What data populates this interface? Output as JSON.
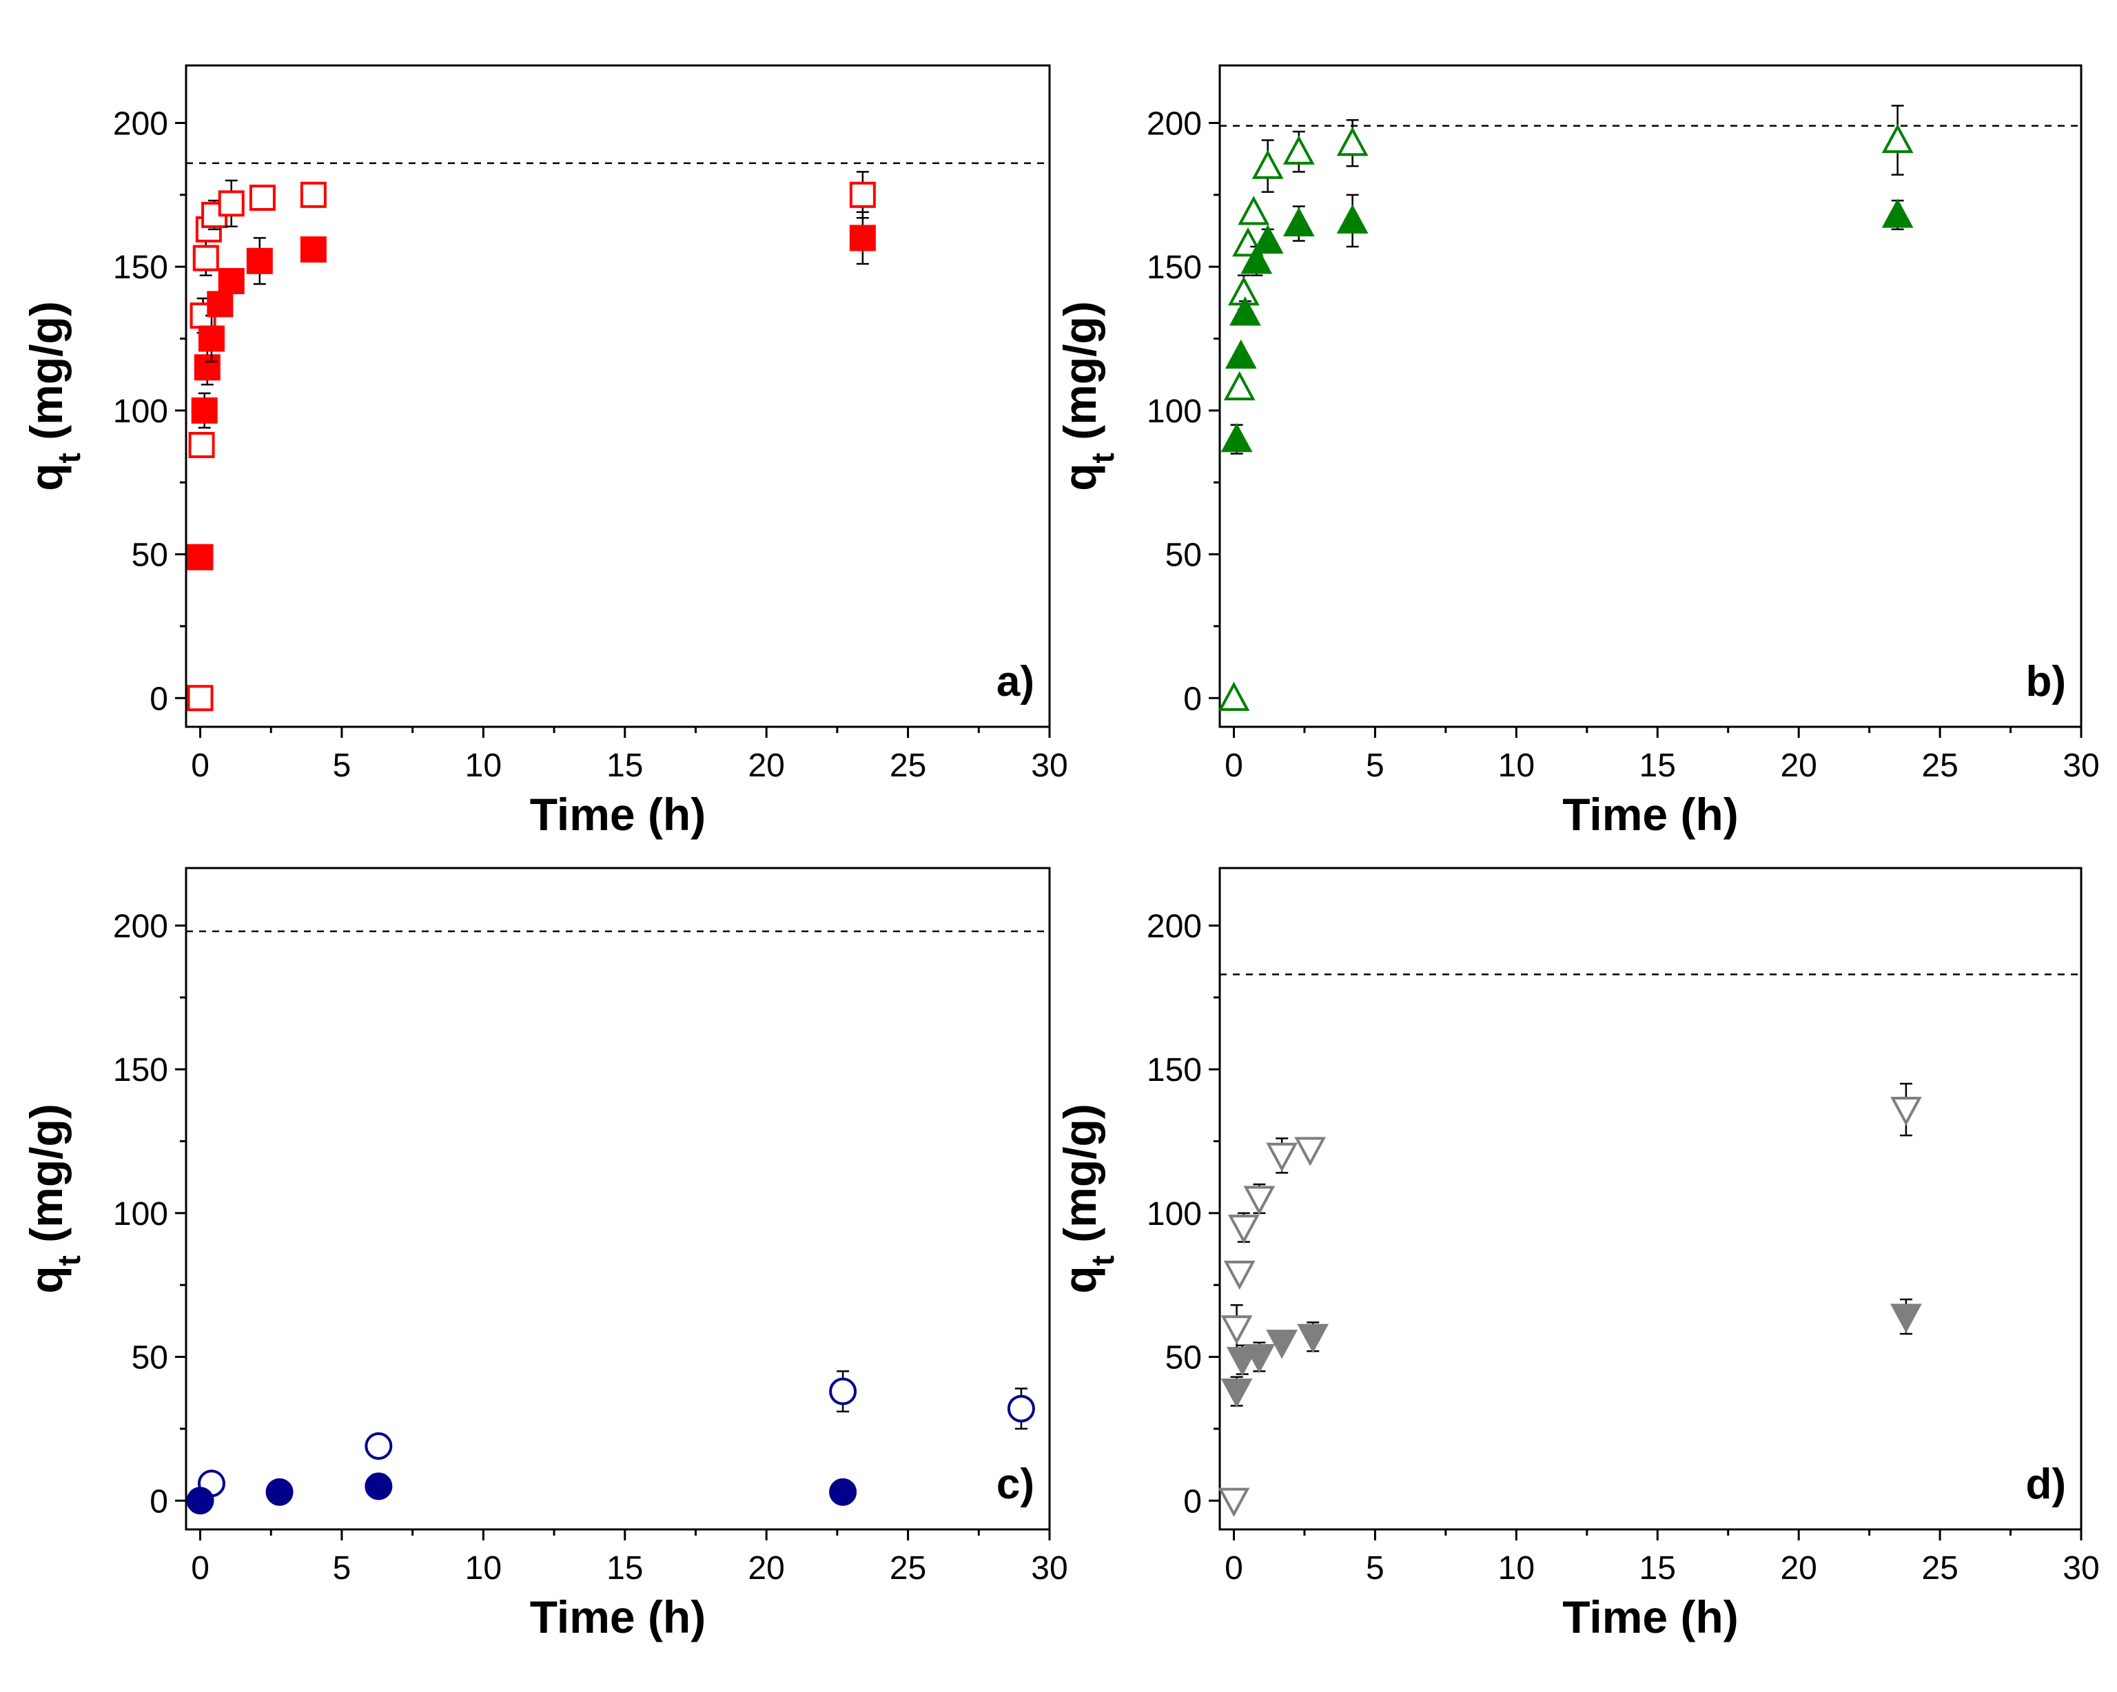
{
  "chart_data": [
    {
      "type": "scatter",
      "panel_label": "a)",
      "xlabel": "Time (h)",
      "ylabel_main": "q",
      "ylabel_sub": "t",
      "ylabel_rest": " (mg/g)",
      "xlim": [
        -0.5,
        30
      ],
      "ylim": [
        -10,
        220
      ],
      "xticks": [
        0,
        5,
        10,
        15,
        20,
        25,
        30
      ],
      "yticks": [
        0,
        50,
        100,
        150,
        200
      ],
      "x_tick_labels": [
        "0",
        "5",
        "10",
        "15",
        "20",
        "25",
        "30"
      ],
      "y_tick_labels": [
        "0",
        "50",
        "100",
        "150",
        "200"
      ],
      "reference_line": 186,
      "color": "#ff0000",
      "marker": "square",
      "series": [
        {
          "name": "open",
          "filled": false,
          "points": [
            {
              "x": 0,
              "y": 0,
              "err": 0
            },
            {
              "x": 0.05,
              "y": 88,
              "err": 0
            },
            {
              "x": 0.1,
              "y": 133,
              "err": 6
            },
            {
              "x": 0.2,
              "y": 153,
              "err": 6
            },
            {
              "x": 0.3,
              "y": 163,
              "err": 4
            },
            {
              "x": 0.5,
              "y": 168,
              "err": 5
            },
            {
              "x": 1.1,
              "y": 172,
              "err": 8
            },
            {
              "x": 2.2,
              "y": 174,
              "err": 0
            },
            {
              "x": 4.0,
              "y": 175,
              "err": 4
            },
            {
              "x": 23.4,
              "y": 175,
              "err": 8
            }
          ]
        },
        {
          "name": "filled",
          "filled": true,
          "points": [
            {
              "x": 0,
              "y": 49,
              "err": 0
            },
            {
              "x": 0.15,
              "y": 100,
              "err": 6
            },
            {
              "x": 0.25,
              "y": 115,
              "err": 6
            },
            {
              "x": 0.4,
              "y": 125,
              "err": 8
            },
            {
              "x": 0.7,
              "y": 137,
              "err": 0
            },
            {
              "x": 1.1,
              "y": 145,
              "err": 0
            },
            {
              "x": 2.1,
              "y": 152,
              "err": 8
            },
            {
              "x": 4.0,
              "y": 156,
              "err": 4
            },
            {
              "x": 23.4,
              "y": 160,
              "err": 9
            }
          ]
        }
      ]
    },
    {
      "type": "scatter",
      "panel_label": "b)",
      "xlabel": "Time (h)",
      "ylabel_main": "q",
      "ylabel_sub": "t",
      "ylabel_rest": " (mg/g)",
      "xlim": [
        -0.5,
        30
      ],
      "ylim": [
        -10,
        220
      ],
      "xticks": [
        0,
        5,
        10,
        15,
        20,
        25,
        30
      ],
      "yticks": [
        0,
        50,
        100,
        150,
        200
      ],
      "x_tick_labels": [
        "0",
        "5",
        "10",
        "15",
        "20",
        "25",
        "30"
      ],
      "y_tick_labels": [
        "0",
        "50",
        "100",
        "150",
        "200"
      ],
      "reference_line": 199,
      "color": "#008000",
      "marker": "triangle-up",
      "series": [
        {
          "name": "open",
          "filled": false,
          "points": [
            {
              "x": 0,
              "y": 0,
              "err": 0
            },
            {
              "x": 0.2,
              "y": 108,
              "err": 0
            },
            {
              "x": 0.35,
              "y": 141,
              "err": 6
            },
            {
              "x": 0.5,
              "y": 158,
              "err": 0
            },
            {
              "x": 0.7,
              "y": 169,
              "err": 0
            },
            {
              "x": 1.2,
              "y": 185,
              "err": 9
            },
            {
              "x": 2.3,
              "y": 190,
              "err": 7
            },
            {
              "x": 4.2,
              "y": 193,
              "err": 8
            },
            {
              "x": 23.5,
              "y": 194,
              "err": 12
            }
          ]
        },
        {
          "name": "filled",
          "filled": true,
          "points": [
            {
              "x": 0.1,
              "y": 90,
              "err": 5
            },
            {
              "x": 0.25,
              "y": 119,
              "err": 0
            },
            {
              "x": 0.4,
              "y": 134,
              "err": 4
            },
            {
              "x": 0.8,
              "y": 152,
              "err": 5
            },
            {
              "x": 1.2,
              "y": 159,
              "err": 4
            },
            {
              "x": 2.3,
              "y": 165,
              "err": 6
            },
            {
              "x": 4.2,
              "y": 166,
              "err": 9
            },
            {
              "x": 23.5,
              "y": 168,
              "err": 5
            }
          ]
        }
      ]
    },
    {
      "type": "scatter",
      "panel_label": "c)",
      "xlabel": "Time (h)",
      "ylabel_main": "q",
      "ylabel_sub": "t",
      "ylabel_rest": " (mg/g)",
      "xlim": [
        -0.5,
        30
      ],
      "ylim": [
        -10,
        220
      ],
      "xticks": [
        0,
        5,
        10,
        15,
        20,
        25,
        30
      ],
      "yticks": [
        0,
        50,
        100,
        150,
        200
      ],
      "x_tick_labels": [
        "0",
        "5",
        "10",
        "15",
        "20",
        "25",
        "30"
      ],
      "y_tick_labels": [
        "0",
        "50",
        "100",
        "150",
        "200"
      ],
      "reference_line": 198,
      "color": "#00008b",
      "marker": "circle",
      "series": [
        {
          "name": "open",
          "filled": false,
          "points": [
            {
              "x": 0.4,
              "y": 6,
              "err": 0
            },
            {
              "x": 6.3,
              "y": 19,
              "err": 0
            },
            {
              "x": 22.7,
              "y": 38,
              "err": 7
            },
            {
              "x": 29.0,
              "y": 32,
              "err": 7
            }
          ]
        },
        {
          "name": "filled",
          "filled": true,
          "points": [
            {
              "x": 0,
              "y": 0,
              "err": 0
            },
            {
              "x": 2.8,
              "y": 3,
              "err": 0
            },
            {
              "x": 6.3,
              "y": 5,
              "err": 3
            },
            {
              "x": 22.7,
              "y": 3,
              "err": 4
            }
          ]
        }
      ]
    },
    {
      "type": "scatter",
      "panel_label": "d)",
      "xlabel": "Time (h)",
      "ylabel_main": "q",
      "ylabel_sub": "t",
      "ylabel_rest": " (mg/g)",
      "xlim": [
        -0.5,
        30
      ],
      "ylim": [
        -10,
        220
      ],
      "xticks": [
        0,
        5,
        10,
        15,
        20,
        25,
        30
      ],
      "yticks": [
        0,
        50,
        100,
        150,
        200
      ],
      "x_tick_labels": [
        "0",
        "5",
        "10",
        "15",
        "20",
        "25",
        "30"
      ],
      "y_tick_labels": [
        "0",
        "50",
        "100",
        "150",
        "200"
      ],
      "reference_line": 183,
      "color": "#7f7f7f",
      "marker": "triangle-down",
      "series": [
        {
          "name": "open",
          "filled": false,
          "points": [
            {
              "x": 0,
              "y": 0,
              "err": 0
            },
            {
              "x": 0.1,
              "y": 60,
              "err": 8
            },
            {
              "x": 0.2,
              "y": 79,
              "err": 0
            },
            {
              "x": 0.35,
              "y": 95,
              "err": 5
            },
            {
              "x": 0.9,
              "y": 105,
              "err": 5
            },
            {
              "x": 1.7,
              "y": 120,
              "err": 6
            },
            {
              "x": 2.7,
              "y": 122,
              "err": 0
            },
            {
              "x": 23.8,
              "y": 136,
              "err": 9
            }
          ]
        },
        {
          "name": "filled",
          "filled": true,
          "points": [
            {
              "x": 0.1,
              "y": 38,
              "err": 5
            },
            {
              "x": 0.3,
              "y": 49,
              "err": 5
            },
            {
              "x": 0.9,
              "y": 50,
              "err": 5
            },
            {
              "x": 1.7,
              "y": 55,
              "err": 0
            },
            {
              "x": 2.8,
              "y": 57,
              "err": 5
            },
            {
              "x": 23.8,
              "y": 64,
              "err": 6
            }
          ]
        }
      ]
    }
  ]
}
